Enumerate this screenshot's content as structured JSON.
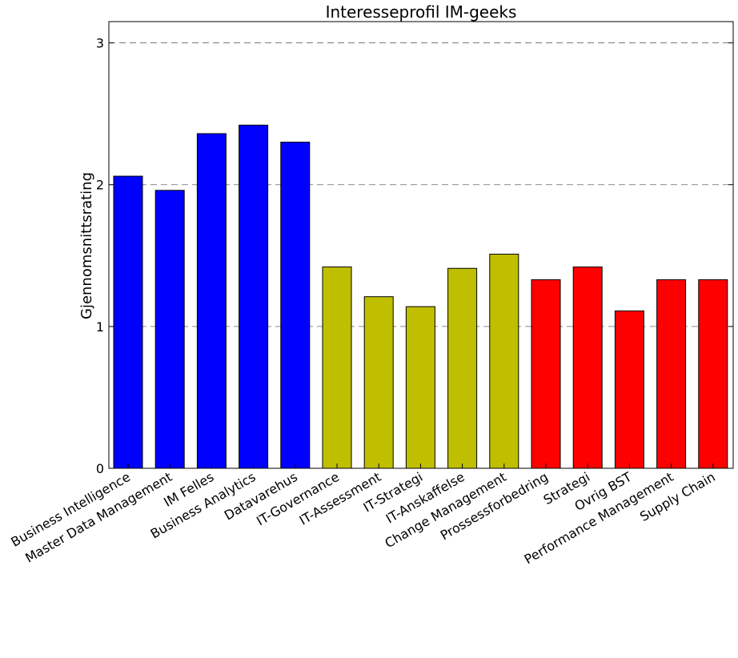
{
  "chart_data": {
    "type": "bar",
    "title": "Interesseprofil IM-geeks",
    "xlabel": "",
    "ylabel": "Gjennomsnittsrating",
    "ylim": [
      0,
      3.15
    ],
    "yticks": [
      "0",
      "1",
      "2",
      "3"
    ],
    "grid": true,
    "categories": [
      "Business Intelligence",
      "Master Data Management",
      "IM Felles",
      "Business Analytics",
      "Datavarehus",
      "IT-Governance",
      "IT-Assessment",
      "IT-Strategi",
      "IT-Anskaffelse",
      "Change Management",
      "Prossessforbedring",
      "Strategi",
      "Ovrig BST",
      "Performance Management",
      "Supply Chain"
    ],
    "values": [
      2.06,
      1.96,
      2.36,
      2.42,
      2.3,
      1.42,
      1.21,
      1.14,
      1.41,
      1.51,
      1.33,
      1.42,
      1.11,
      1.33,
      1.33
    ],
    "colors": [
      "#0000ff",
      "#0000ff",
      "#0000ff",
      "#0000ff",
      "#0000ff",
      "#bfbf00",
      "#bfbf00",
      "#bfbf00",
      "#bfbf00",
      "#bfbf00",
      "#ff0000",
      "#ff0000",
      "#ff0000",
      "#ff0000",
      "#ff0000"
    ]
  }
}
